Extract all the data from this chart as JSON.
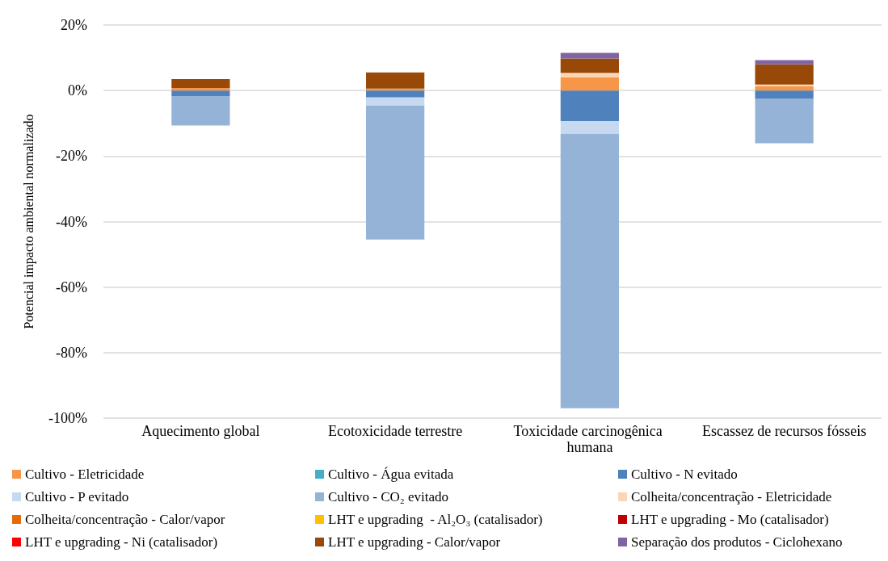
{
  "chart_data": {
    "type": "bar",
    "stacked": true,
    "ylabel": "Potencial impacto ambiental normalizado",
    "categories": [
      "Aquecimento global",
      "Ecotoxicidade terrestre",
      "Toxicidade carcinogênica humana",
      "Escassez de recursos fósseis"
    ],
    "ylim": [
      -100,
      20
    ],
    "yticks": [
      {
        "value": -100,
        "label": "-100%"
      },
      {
        "value": -80,
        "label": "-80%"
      },
      {
        "value": -60,
        "label": "-60%"
      },
      {
        "value": -40,
        "label": "-40%"
      },
      {
        "value": -20,
        "label": "-20%"
      },
      {
        "value": 0,
        "label": "0%"
      },
      {
        "value": 20,
        "label": "20%"
      }
    ],
    "grid": "y",
    "legend": "bottom",
    "series": [
      {
        "name": "Cultivo - Eletricidade",
        "color": "#f79646",
        "values": [
          0.8,
          0.6,
          4,
          1.3
        ]
      },
      {
        "name": "Cultivo - Água evitada",
        "color": "#4bacc6",
        "values": [
          null,
          null,
          null,
          null
        ]
      },
      {
        "name": "Cultivo - N evitado",
        "color": "#4f81bd",
        "values": [
          -1.7,
          -2.1,
          -9.4,
          -2.4
        ]
      },
      {
        "name": "Cultivo - P evitado",
        "color": "#c6d9f1",
        "values": [
          0,
          -2.5,
          -3.8,
          0
        ]
      },
      {
        "name": "Cultivo - CO₂ evitado",
        "color": "#95b3d7",
        "values": [
          -9,
          -40.9,
          -83.8,
          -13.7
        ]
      },
      {
        "name": "Colheita/concentração - Eletricidade",
        "color": "#fcd5b5",
        "values": [
          0,
          0,
          1.4,
          0.5
        ]
      },
      {
        "name": "Colheita/concentração - Calor/vapor",
        "color": "#e36c09",
        "values": [
          null,
          null,
          null,
          null
        ]
      },
      {
        "name": "LHT e upgrading  - Al₂O₃ (catalisador)",
        "color": "#ffc000",
        "values": [
          null,
          null,
          null,
          null
        ]
      },
      {
        "name": "LHT e upgrading - Mo (catalisador)",
        "color": "#c00000",
        "values": [
          null,
          null,
          null,
          null
        ]
      },
      {
        "name": "LHT e upgrading - Ni (catalisador)",
        "color": "#ff0000",
        "values": [
          null,
          null,
          null,
          null
        ]
      },
      {
        "name": "LHT e upgrading - Calor/vapor",
        "color": "#984807",
        "values": [
          2.7,
          4.9,
          4.4,
          6.2
        ]
      },
      {
        "name": "Separação dos produtos - Ciclohexano",
        "color": "#8064a2",
        "values": [
          0,
          0,
          1.7,
          1.3
        ]
      }
    ]
  }
}
